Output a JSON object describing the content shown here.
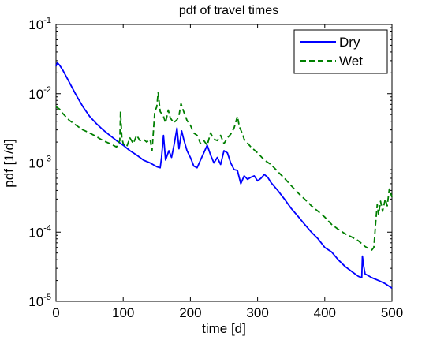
{
  "chart_data": {
    "type": "line",
    "title": "pdf of travel times",
    "xlabel": "time [d]",
    "ylabel": "pdf [1/d]",
    "xlim": [
      0,
      500
    ],
    "ylim": [
      1e-05,
      0.1
    ],
    "yscale": "log",
    "grid": false,
    "legend_position": "top-right",
    "x_ticks": [
      {
        "value": 0,
        "label": "0"
      },
      {
        "value": 100,
        "label": "100"
      },
      {
        "value": 200,
        "label": "200"
      },
      {
        "value": 300,
        "label": "300"
      },
      {
        "value": 400,
        "label": "400"
      },
      {
        "value": 500,
        "label": "500"
      }
    ],
    "y_ticks": [
      {
        "value": 1e-05,
        "base": "10",
        "exp": "-5"
      },
      {
        "value": 0.0001,
        "base": "10",
        "exp": "-4"
      },
      {
        "value": 0.001,
        "base": "10",
        "exp": "-3"
      },
      {
        "value": 0.01,
        "base": "10",
        "exp": "-2"
      },
      {
        "value": 0.1,
        "base": "10",
        "exp": "-1"
      }
    ],
    "series": [
      {
        "name": "Dry",
        "color": "#0000ff",
        "dash": "solid",
        "points": [
          [
            0,
            0.025
          ],
          [
            2,
            0.028
          ],
          [
            5,
            0.026
          ],
          [
            10,
            0.022
          ],
          [
            20,
            0.0145
          ],
          [
            30,
            0.0095
          ],
          [
            40,
            0.0065
          ],
          [
            50,
            0.0047
          ],
          [
            60,
            0.0037
          ],
          [
            70,
            0.003
          ],
          [
            80,
            0.0025
          ],
          [
            90,
            0.0021
          ],
          [
            100,
            0.0018
          ],
          [
            110,
            0.0015
          ],
          [
            120,
            0.0013
          ],
          [
            130,
            0.0011
          ],
          [
            140,
            0.001
          ],
          [
            150,
            0.00088
          ],
          [
            155,
            0.00085
          ],
          [
            157,
            0.0012
          ],
          [
            160,
            0.0025
          ],
          [
            163,
            0.0011
          ],
          [
            168,
            0.0015
          ],
          [
            172,
            0.0012
          ],
          [
            176,
            0.0019
          ],
          [
            180,
            0.0032
          ],
          [
            183,
            0.0016
          ],
          [
            187,
            0.0029
          ],
          [
            190,
            0.0022
          ],
          [
            195,
            0.0015
          ],
          [
            200,
            0.0012
          ],
          [
            205,
            0.0009
          ],
          [
            210,
            0.00085
          ],
          [
            215,
            0.0011
          ],
          [
            220,
            0.0014
          ],
          [
            225,
            0.0018
          ],
          [
            230,
            0.0013
          ],
          [
            235,
            0.001
          ],
          [
            240,
            0.0012
          ],
          [
            245,
            0.00095
          ],
          [
            250,
            0.0015
          ],
          [
            255,
            0.0014
          ],
          [
            260,
            0.001
          ],
          [
            265,
            0.0008
          ],
          [
            270,
            0.00078
          ],
          [
            275,
            0.0005
          ],
          [
            280,
            0.00065
          ],
          [
            285,
            0.00058
          ],
          [
            290,
            0.00062
          ],
          [
            295,
            0.00065
          ],
          [
            300,
            0.00055
          ],
          [
            305,
            0.0006
          ],
          [
            310,
            0.00068
          ],
          [
            315,
            0.00062
          ],
          [
            320,
            0.00052
          ],
          [
            330,
            0.0004
          ],
          [
            340,
            0.0003
          ],
          [
            350,
            0.00022
          ],
          [
            360,
            0.00017
          ],
          [
            370,
            0.00013
          ],
          [
            380,
            0.0001
          ],
          [
            390,
            8e-05
          ],
          [
            400,
            6e-05
          ],
          [
            410,
            5.2e-05
          ],
          [
            420,
            4e-05
          ],
          [
            430,
            3.2e-05
          ],
          [
            440,
            2.7e-05
          ],
          [
            450,
            2.3e-05
          ],
          [
            455,
            2.2e-05
          ],
          [
            456,
            4.5e-05
          ],
          [
            458,
            3.2e-05
          ],
          [
            460,
            2.5e-05
          ],
          [
            470,
            2.2e-05
          ],
          [
            480,
            2e-05
          ],
          [
            490,
            1.8e-05
          ],
          [
            500,
            1.55e-05
          ]
        ]
      },
      {
        "name": "Wet",
        "color": "#007f00",
        "dash": "dashed",
        "points": [
          [
            0,
            0.0065
          ],
          [
            5,
            0.006
          ],
          [
            10,
            0.0052
          ],
          [
            20,
            0.0041
          ],
          [
            30,
            0.0035
          ],
          [
            40,
            0.003
          ],
          [
            50,
            0.0027
          ],
          [
            60,
            0.0024
          ],
          [
            70,
            0.0021
          ],
          [
            80,
            0.0019
          ],
          [
            90,
            0.0017
          ],
          [
            95,
            0.0021
          ],
          [
            96,
            0.0055
          ],
          [
            98,
            0.0023
          ],
          [
            100,
            0.0019
          ],
          [
            105,
            0.0017
          ],
          [
            110,
            0.0023
          ],
          [
            115,
            0.0019
          ],
          [
            120,
            0.0025
          ],
          [
            125,
            0.0021
          ],
          [
            130,
            0.0022
          ],
          [
            135,
            0.002
          ],
          [
            140,
            0.0022
          ],
          [
            143,
            0.0015
          ],
          [
            147,
            0.0055
          ],
          [
            150,
            0.0065
          ],
          [
            152,
            0.0105
          ],
          [
            155,
            0.0055
          ],
          [
            160,
            0.0047
          ],
          [
            163,
            0.0038
          ],
          [
            167,
            0.0058
          ],
          [
            170,
            0.0045
          ],
          [
            175,
            0.0038
          ],
          [
            180,
            0.0042
          ],
          [
            183,
            0.0048
          ],
          [
            186,
            0.0072
          ],
          [
            190,
            0.0055
          ],
          [
            195,
            0.0041
          ],
          [
            200,
            0.0035
          ],
          [
            205,
            0.0027
          ],
          [
            210,
            0.0025
          ],
          [
            215,
            0.0019
          ],
          [
            220,
            0.0021
          ],
          [
            225,
            0.0018
          ],
          [
            230,
            0.0027
          ],
          [
            235,
            0.0022
          ],
          [
            240,
            0.0021
          ],
          [
            245,
            0.0025
          ],
          [
            250,
            0.0019
          ],
          [
            255,
            0.0023
          ],
          [
            260,
            0.0026
          ],
          [
            265,
            0.0032
          ],
          [
            270,
            0.0047
          ],
          [
            273,
            0.0033
          ],
          [
            277,
            0.0027
          ],
          [
            280,
            0.0022
          ],
          [
            290,
            0.0017
          ],
          [
            300,
            0.0014
          ],
          [
            310,
            0.0011
          ],
          [
            320,
            0.00095
          ],
          [
            330,
            0.00075
          ],
          [
            340,
            0.0006
          ],
          [
            350,
            0.00047
          ],
          [
            360,
            0.00037
          ],
          [
            370,
            0.0003
          ],
          [
            380,
            0.00024
          ],
          [
            390,
            0.0002
          ],
          [
            400,
            0.000165
          ],
          [
            410,
            0.00013
          ],
          [
            420,
            0.00011
          ],
          [
            430,
            9.5e-05
          ],
          [
            440,
            8.5e-05
          ],
          [
            450,
            7.5e-05
          ],
          [
            460,
            6.2e-05
          ],
          [
            465,
            5.8e-05
          ],
          [
            470,
            5.5e-05
          ],
          [
            473,
            6e-05
          ],
          [
            476,
            0.00015
          ],
          [
            478,
            0.00025
          ],
          [
            480,
            0.00018
          ],
          [
            483,
            0.00028
          ],
          [
            486,
            0.0002
          ],
          [
            490,
            0.0003
          ],
          [
            493,
            0.00024
          ],
          [
            496,
            0.00042
          ],
          [
            500,
            0.00032
          ]
        ]
      }
    ]
  }
}
